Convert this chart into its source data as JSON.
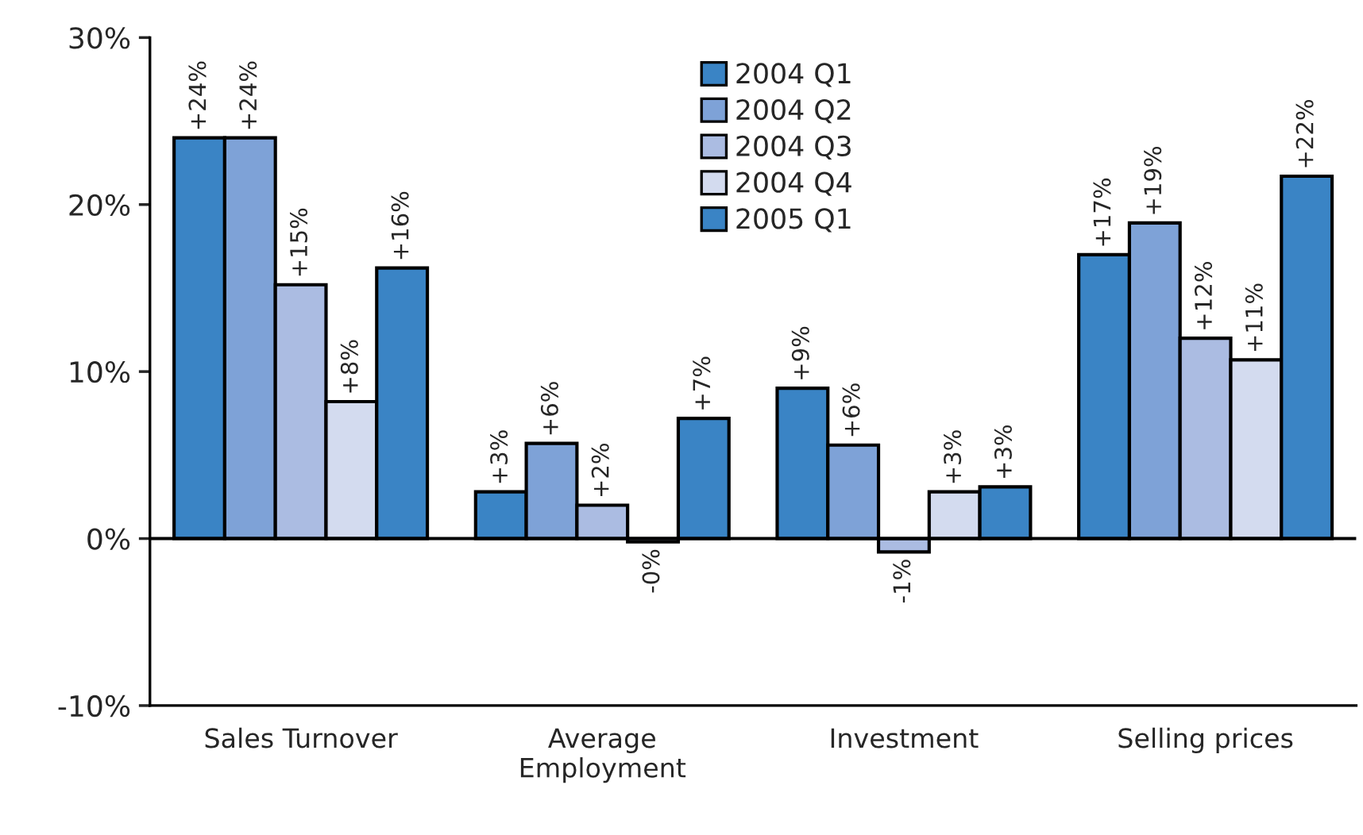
{
  "chart_data": {
    "type": "bar",
    "categories": [
      "Sales Turnover",
      "Average\nEmployment",
      "Investment",
      "Selling prices"
    ],
    "series": [
      {
        "name": "2004 Q1",
        "color": "#3a84c5",
        "values": [
          24,
          2.8,
          9.0,
          17.0
        ],
        "value_labels": [
          "+24%",
          "+3%",
          "+9%",
          "+17%"
        ]
      },
      {
        "name": "2004 Q2",
        "color": "#7ea2d7",
        "values": [
          24,
          5.7,
          5.6,
          18.9
        ],
        "value_labels": [
          "+24%",
          "+6%",
          "+6%",
          "+19%"
        ]
      },
      {
        "name": "2004 Q3",
        "color": "#abbce2",
        "values": [
          15.2,
          2.0,
          -0.8,
          12.0
        ],
        "value_labels": [
          "+15%",
          "+2%",
          "-1%",
          "+12%"
        ]
      },
      {
        "name": "2004 Q4",
        "color": "#d3dbef",
        "values": [
          8.2,
          -0.2,
          2.8,
          10.7
        ],
        "value_labels": [
          "+8%",
          "-0%",
          "+3%",
          "+11%"
        ]
      },
      {
        "name": "2005 Q1",
        "color": "#3a84c5",
        "values": [
          16.2,
          7.2,
          3.1,
          21.7
        ],
        "value_labels": [
          "+16%",
          "+7%",
          "+3%",
          "+22%"
        ]
      }
    ],
    "ylim": [
      -10,
      30
    ],
    "yticks": [
      {
        "value": -10,
        "label": "-10%"
      },
      {
        "value": 0,
        "label": "0%"
      },
      {
        "value": 10,
        "label": "10%"
      },
      {
        "value": 20,
        "label": "20%"
      },
      {
        "value": 30,
        "label": "30%"
      }
    ],
    "ref_lines": [
      {
        "axis": "y",
        "value": 0,
        "color": "#000000"
      }
    ],
    "grid": false,
    "legend": "top"
  }
}
